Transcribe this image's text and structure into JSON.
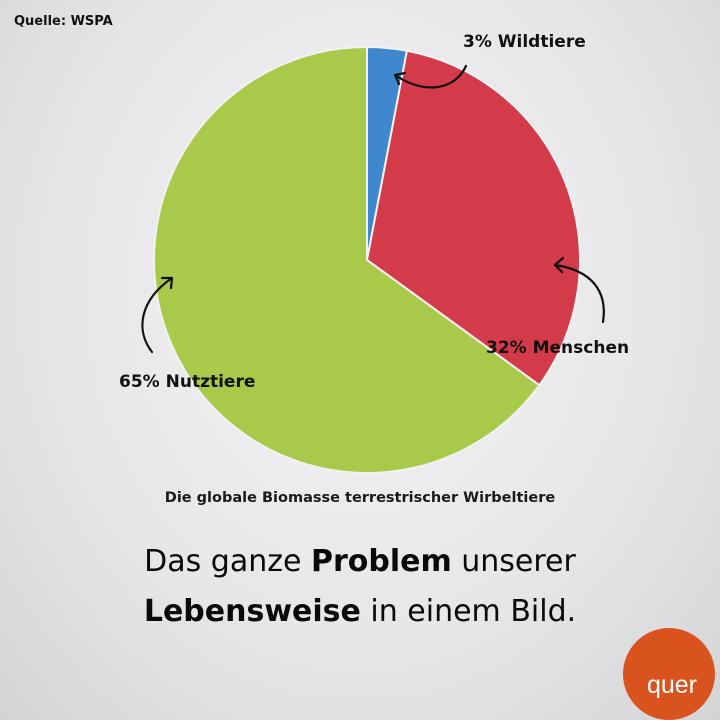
{
  "source": "Quelle: WSPA",
  "chart_data": {
    "type": "pie",
    "title": "",
    "caption": "Die globale Biomasse terrestrischer Wirbeltiere",
    "start_angle": "12 o'clock, clockwise",
    "slices": [
      {
        "label": "3% Wildtiere",
        "value": 3,
        "color": "#3f87cf"
      },
      {
        "label": "32% Menschen",
        "value": 32,
        "color": "#d33a4a"
      },
      {
        "label": "65% Nutztiere",
        "value": 65,
        "color": "#a9c94a"
      }
    ]
  },
  "headline": {
    "line1": [
      {
        "text": "Das ganze ",
        "bold": false
      },
      {
        "text": "Problem",
        "bold": true
      },
      {
        "text": " unserer",
        "bold": false
      }
    ],
    "line2": [
      {
        "text": "Lebensweise",
        "bold": true
      },
      {
        "text": " in einem Bild.",
        "bold": false
      }
    ]
  },
  "logo": {
    "text": "quer",
    "color": "#d9531e"
  }
}
